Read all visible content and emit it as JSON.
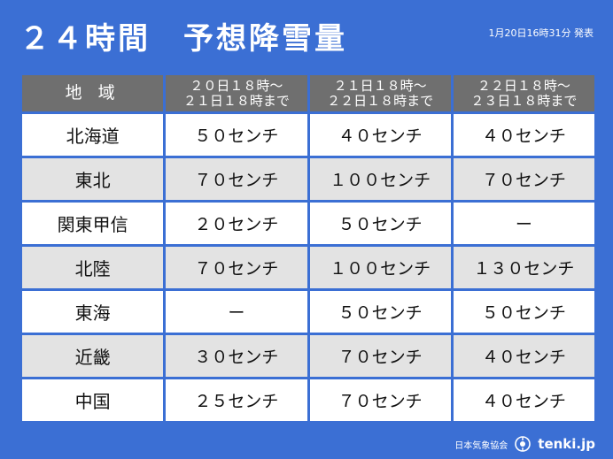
{
  "title": "２４時間　予想降雪量",
  "issued": "1月20日16時31分 発表",
  "table": {
    "headers": {
      "region": "地 域",
      "periods": [
        {
          "line1": "２０日１８時～",
          "line2": "２１日１８時まで"
        },
        {
          "line1": "２１日１８時～",
          "line2": "２２日１８時まで"
        },
        {
          "line1": "２２日１８時～",
          "line2": "２３日１８時まで"
        }
      ]
    },
    "rows": [
      {
        "region": "北海道",
        "values": [
          "５０センチ",
          "４０センチ",
          "４０センチ"
        ]
      },
      {
        "region": "東北",
        "values": [
          "７０センチ",
          "１００センチ",
          "７０センチ"
        ]
      },
      {
        "region": "関東甲信",
        "values": [
          "２０センチ",
          "５０センチ",
          "ー"
        ]
      },
      {
        "region": "北陸",
        "values": [
          "７０センチ",
          "１００センチ",
          "１３０センチ"
        ]
      },
      {
        "region": "東海",
        "values": [
          "ー",
          "５０センチ",
          "５０センチ"
        ]
      },
      {
        "region": "近畿",
        "values": [
          "３０センチ",
          "７０センチ",
          "４０センチ"
        ]
      },
      {
        "region": "中国",
        "values": [
          "２５センチ",
          "７０センチ",
          "４０センチ"
        ]
      }
    ]
  },
  "footer": {
    "association": "日本気象協会",
    "brand": "tenki.jp",
    "logo_icon": "tenki-logo-icon"
  },
  "colors": {
    "background": "#3b6fd4",
    "header_bg": "#6f6f6f",
    "row_light": "#ffffff",
    "row_shaded": "#e3e3e3"
  }
}
